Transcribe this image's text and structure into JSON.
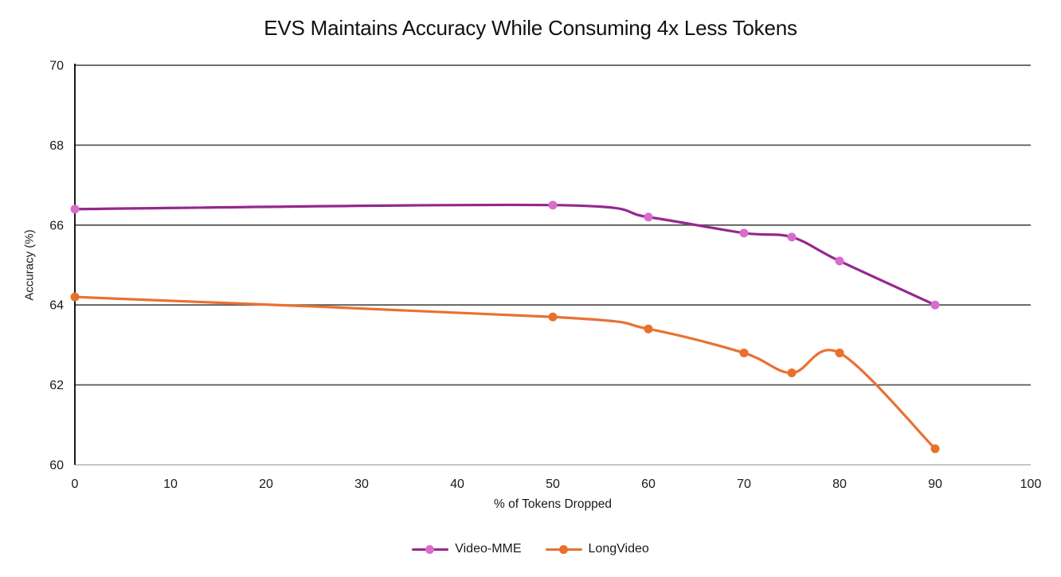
{
  "chart_data": {
    "type": "line",
    "title": "EVS Maintains Accuracy While Consuming 4x Less Tokens",
    "xlabel": "% of Tokens Dropped",
    "ylabel": "Accuracy (%)",
    "xlim": [
      0,
      100
    ],
    "ylim": [
      60,
      70
    ],
    "x_ticks": [
      0,
      10,
      20,
      30,
      40,
      50,
      60,
      70,
      80,
      90,
      100
    ],
    "y_ticks": [
      60,
      62,
      64,
      66,
      68,
      70
    ],
    "grid": "horizontal-major",
    "smooth": true,
    "legend_position": "bottom",
    "series": [
      {
        "name": "Video-MME",
        "x": [
          0,
          50,
          60,
          70,
          75,
          80,
          90
        ],
        "values": [
          66.4,
          66.5,
          66.2,
          65.8,
          65.7,
          65.1,
          64.0
        ],
        "line_color": "#96278E",
        "marker_color": "#D86DCD"
      },
      {
        "name": "LongVideo",
        "x": [
          0,
          50,
          60,
          70,
          75,
          80,
          90
        ],
        "values": [
          64.2,
          63.7,
          63.4,
          62.8,
          62.3,
          62.8,
          60.4
        ],
        "line_color": "#E97132",
        "marker_color": "#E8702B"
      }
    ],
    "colors": {
      "gridline": "#595959",
      "bottom_axis": "#BFBFBF",
      "y_axis_line": "#000000",
      "tick_text": "#1a1a1a",
      "background": "#ffffff"
    }
  }
}
